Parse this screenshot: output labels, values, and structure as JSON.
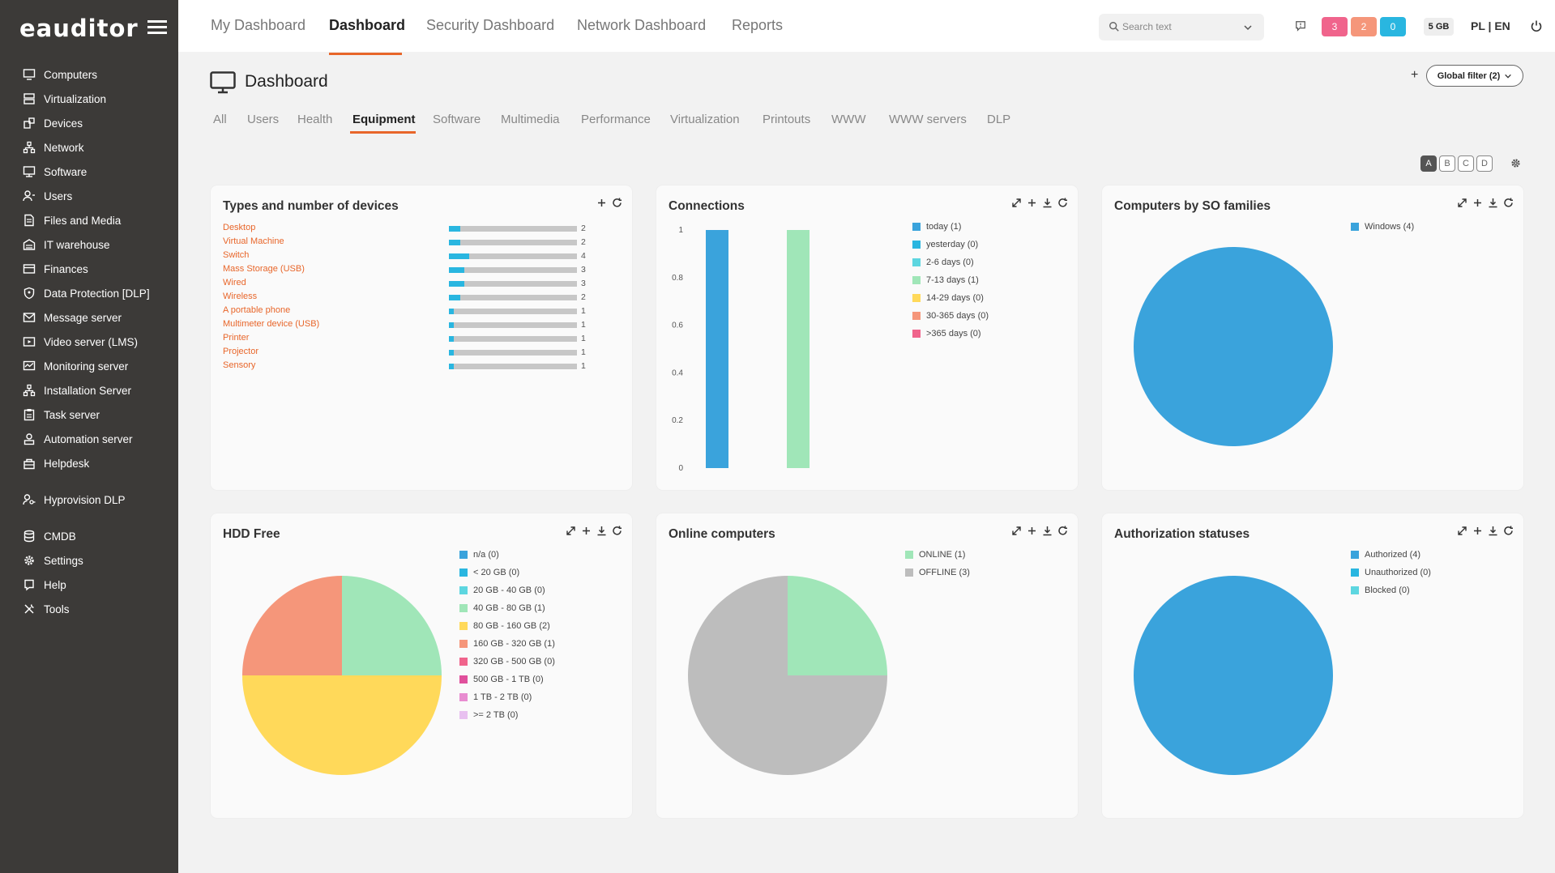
{
  "app": {
    "logo": "eauditor"
  },
  "sidebar": {
    "items": [
      {
        "label": "Computers",
        "icon": "desktop-icon"
      },
      {
        "label": "Virtualization",
        "icon": "server-icon"
      },
      {
        "label": "Devices",
        "icon": "devices-icon"
      },
      {
        "label": "Network",
        "icon": "network-icon"
      },
      {
        "label": "Software",
        "icon": "software-icon"
      },
      {
        "label": "Users",
        "icon": "users-icon"
      },
      {
        "label": "Files and Media",
        "icon": "files-icon"
      },
      {
        "label": "IT warehouse",
        "icon": "warehouse-icon"
      },
      {
        "label": "Finances",
        "icon": "finances-icon"
      },
      {
        "label": "Data Protection [DLP]",
        "icon": "shield-icon"
      },
      {
        "label": "Message server",
        "icon": "mail-icon"
      },
      {
        "label": "Video server (LMS)",
        "icon": "video-icon"
      },
      {
        "label": "Monitoring server",
        "icon": "monitoring-icon"
      },
      {
        "label": "Installation Server",
        "icon": "installation-icon"
      },
      {
        "label": "Task server",
        "icon": "task-icon"
      },
      {
        "label": "Automation server",
        "icon": "automation-icon"
      },
      {
        "label": "Helpdesk",
        "icon": "helpdesk-icon"
      },
      {
        "label": "Hyprovision DLP",
        "icon": "user-key-icon"
      },
      {
        "label": "CMDB",
        "icon": "database-icon"
      },
      {
        "label": "Settings",
        "icon": "gear-icon"
      },
      {
        "label": "Help",
        "icon": "help-icon"
      },
      {
        "label": "Tools",
        "icon": "tools-icon"
      }
    ]
  },
  "topbar": {
    "tabs": [
      "My Dashboard",
      "Dashboard",
      "Security Dashboard",
      "Network Dashboard",
      "Reports"
    ],
    "active_tab": "Dashboard",
    "search_placeholder": "Search text",
    "badges": [
      {
        "value": "3",
        "color": "#f0648c"
      },
      {
        "value": "2",
        "color": "#f5967a"
      },
      {
        "value": "0",
        "color": "#29b6e0"
      }
    ],
    "storage": "5 GB",
    "lang_pl": "PL",
    "lang_sep": " | ",
    "lang_en": "EN"
  },
  "page": {
    "title": "Dashboard",
    "add_label": "+",
    "global_filter": "Global filter (2)",
    "subtabs": [
      "All",
      "Users",
      "Health",
      "Equipment",
      "Software",
      "Multimedia",
      "Performance",
      "Virtualization",
      "Printouts",
      "WWW",
      "WWW servers",
      "DLP"
    ],
    "active_subtab": "Equipment",
    "layouts": [
      "A",
      "B",
      "C",
      "D"
    ],
    "active_layout": "A"
  },
  "widgets": {
    "devices": {
      "title": "Types and number of devices",
      "items": [
        {
          "label": "Desktop",
          "count": "2",
          "fraction": 0.09
        },
        {
          "label": "Virtual Machine",
          "count": "2",
          "fraction": 0.09
        },
        {
          "label": "Switch",
          "count": "4",
          "fraction": 0.16
        },
        {
          "label": "Mass Storage (USB)",
          "count": "3",
          "fraction": 0.12
        },
        {
          "label": "Wired",
          "count": "3",
          "fraction": 0.12
        },
        {
          "label": "Wireless",
          "count": "2",
          "fraction": 0.09
        },
        {
          "label": "A portable phone",
          "count": "1",
          "fraction": 0.04
        },
        {
          "label": "Multimeter device (USB)",
          "count": "1",
          "fraction": 0.04
        },
        {
          "label": "Printer",
          "count": "1",
          "fraction": 0.04
        },
        {
          "label": "Projector",
          "count": "1",
          "fraction": 0.04
        },
        {
          "label": "Sensory",
          "count": "1",
          "fraction": 0.04
        }
      ]
    },
    "connections": {
      "title": "Connections",
      "legend": [
        {
          "label": "today (1)",
          "color": "#3aa3dc"
        },
        {
          "label": "yesterday (0)",
          "color": "#29b6e0"
        },
        {
          "label": "2-6 days (0)",
          "color": "#5dd6e0"
        },
        {
          "label": "7-13 days (1)",
          "color": "#a0e6b8"
        },
        {
          "label": "14-29 days (0)",
          "color": "#ffd95a"
        },
        {
          "label": "30-365 days (0)",
          "color": "#f5967a"
        },
        {
          "label": ">365 days (0)",
          "color": "#f0648c"
        }
      ]
    },
    "os": {
      "title": "Computers by SO families",
      "legend": [
        {
          "label": "Windows (4)",
          "color": "#3aa3dc"
        }
      ]
    },
    "hdd": {
      "title": "HDD Free",
      "legend": [
        {
          "label": "n/a (0)",
          "color": "#3aa3dc"
        },
        {
          "label": "< 20 GB (0)",
          "color": "#29b6e0"
        },
        {
          "label": "20 GB - 40 GB (0)",
          "color": "#5dd6e0"
        },
        {
          "label": "40 GB - 80 GB (1)",
          "color": "#a0e6b8"
        },
        {
          "label": "80 GB - 160 GB (2)",
          "color": "#ffd95a"
        },
        {
          "label": "160 GB - 320 GB (1)",
          "color": "#f5967a"
        },
        {
          "label": "320 GB - 500 GB (0)",
          "color": "#f0648c"
        },
        {
          "label": "500 GB - 1 TB (0)",
          "color": "#e0509c"
        },
        {
          "label": "1 TB - 2 TB (0)",
          "color": "#e88cd0"
        },
        {
          "label": ">= 2 TB (0)",
          "color": "#e8c0f0"
        }
      ]
    },
    "online": {
      "title": "Online computers",
      "legend": [
        {
          "label": "ONLINE (1)",
          "color": "#a0e6b8"
        },
        {
          "label": "OFFLINE (3)",
          "color": "#bdbdbd"
        }
      ]
    },
    "auth": {
      "title": "Authorization statuses",
      "legend": [
        {
          "label": "Authorized (4)",
          "color": "#3aa3dc"
        },
        {
          "label": "Unauthorized (0)",
          "color": "#29b6e0"
        },
        {
          "label": "Blocked (0)",
          "color": "#5dd6e0"
        }
      ]
    }
  },
  "chart_data": [
    {
      "type": "bar",
      "title": "Connections",
      "categories": [
        "today",
        "7-13 days"
      ],
      "values": [
        1,
        1
      ],
      "colors": [
        "#3aa3dc",
        "#a0e6b8"
      ],
      "ylim": [
        0,
        1
      ],
      "yticks": [
        "0",
        "0.2",
        "0.4",
        "0.6",
        "0.8",
        "1"
      ]
    },
    {
      "type": "pie",
      "title": "Computers by SO families",
      "labels": [
        "Windows"
      ],
      "values": [
        4
      ],
      "colors": [
        "#3aa3dc"
      ]
    },
    {
      "type": "pie",
      "title": "HDD Free",
      "labels": [
        "40 GB - 80 GB",
        "80 GB - 160 GB",
        "160 GB - 320 GB"
      ],
      "values": [
        1,
        2,
        1
      ],
      "colors": [
        "#a0e6b8",
        "#ffd95a",
        "#f5967a"
      ]
    },
    {
      "type": "pie",
      "title": "Online computers",
      "labels": [
        "ONLINE",
        "OFFLINE"
      ],
      "values": [
        1,
        3
      ],
      "colors": [
        "#a0e6b8",
        "#bdbdbd"
      ]
    },
    {
      "type": "pie",
      "title": "Authorization statuses",
      "labels": [
        "Authorized"
      ],
      "values": [
        4
      ],
      "colors": [
        "#3aa3dc"
      ]
    }
  ]
}
